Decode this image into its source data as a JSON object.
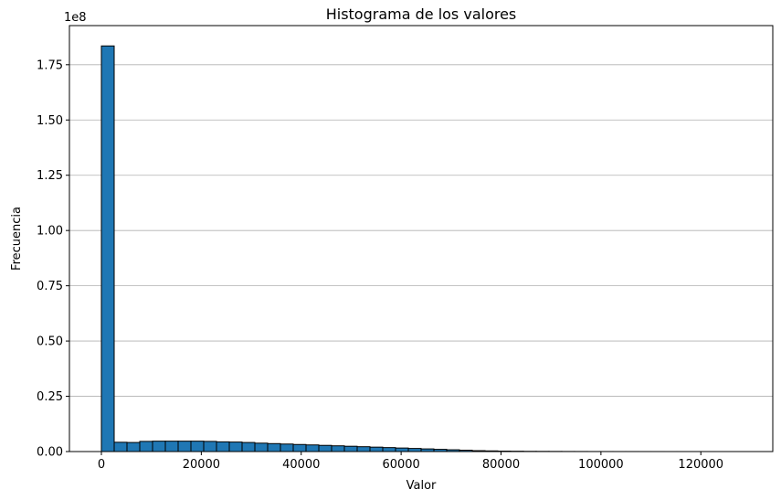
{
  "chart_data": {
    "type": "bar",
    "title": "Histograma de los valores",
    "xlabel": "Valor",
    "ylabel": "Frecuencia",
    "y_offset_label": "1e8",
    "xlim": [
      -6400,
      134400
    ],
    "ylim": [
      0,
      192700000
    ],
    "x_ticks": [
      0,
      20000,
      40000,
      60000,
      80000,
      100000,
      120000
    ],
    "x_tick_labels": [
      "0",
      "20000",
      "40000",
      "60000",
      "80000",
      "100000",
      "120000"
    ],
    "y_ticks": [
      0,
      25000000,
      50000000,
      75000000,
      100000000,
      125000000,
      150000000,
      175000000
    ],
    "y_tick_labels": [
      "0.00",
      "0.25",
      "0.50",
      "0.75",
      "1.00",
      "1.25",
      "1.50",
      "1.75"
    ],
    "grid": "y",
    "bar_color": "#1f77b4",
    "edge_color": "#000000",
    "bin_start": 0,
    "bin_width": 2560,
    "bin_values": [
      183500000,
      4200000,
      4100000,
      4600000,
      4700000,
      4700000,
      4700000,
      4700000,
      4600000,
      4400000,
      4300000,
      4100000,
      3800000,
      3600000,
      3400000,
      3200000,
      3000000,
      2800000,
      2600000,
      2400000,
      2200000,
      2000000,
      1800000,
      1600000,
      1400000,
      1200000,
      1000000,
      800000,
      600000,
      400000,
      300000,
      200000,
      150000,
      100000,
      80000,
      60000,
      40000,
      30000,
      20000,
      15000,
      10000,
      8000,
      6000,
      4000,
      3000,
      2000,
      1500,
      1000,
      800,
      500
    ]
  }
}
